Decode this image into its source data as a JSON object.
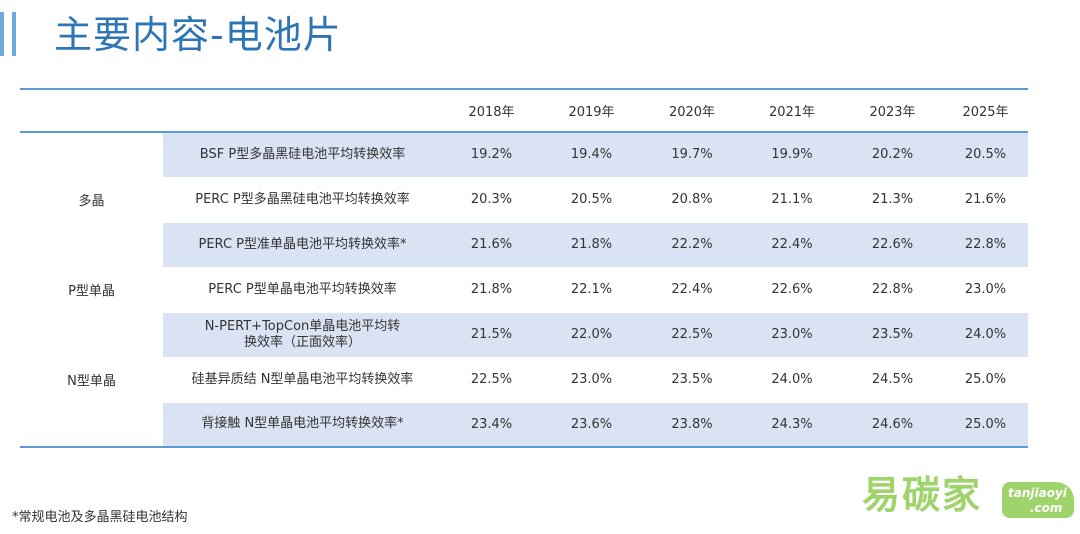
{
  "title": "主要内容-电池片",
  "table": {
    "headers": [
      "",
      "",
      "2018年",
      "2019年",
      "2020年",
      "2021年",
      "2023年",
      "2025年"
    ],
    "groups": [
      {
        "category": "多晶",
        "rows": [
          {
            "desc": "BSF P型多晶黑硅电池平均转换效率",
            "values": [
              "19.2%",
              "19.4%",
              "19.7%",
              "19.9%",
              "20.2%",
              "20.5%"
            ]
          },
          {
            "desc": "PERC P型多晶黑硅电池平均转换效率",
            "values": [
              "20.3%",
              "20.5%",
              "20.8%",
              "21.1%",
              "21.3%",
              "21.6%"
            ]
          },
          {
            "desc": "PERC P型准单晶电池平均转换效率*",
            "values": [
              "21.6%",
              "21.8%",
              "22.2%",
              "22.4%",
              "22.6%",
              "22.8%"
            ]
          }
        ]
      },
      {
        "category": "P型单晶",
        "rows": [
          {
            "desc": "PERC P型单晶电池平均转换效率",
            "values": [
              "21.8%",
              "22.1%",
              "22.4%",
              "22.6%",
              "22.8%",
              "23.0%"
            ]
          }
        ]
      },
      {
        "category": "N型单晶",
        "rows": [
          {
            "desc": "N-PERT+TopCon单晶电池平均转换效率（正面效率）",
            "values": [
              "21.5%",
              "22.0%",
              "22.5%",
              "23.0%",
              "23.5%",
              "24.0%"
            ]
          },
          {
            "desc": "硅基异质结 N型单晶电池平均转换效率",
            "values": [
              "22.5%",
              "23.0%",
              "23.5%",
              "24.0%",
              "24.5%",
              "25.0%"
            ]
          },
          {
            "desc": "背接触 N型单晶电池平均转换效率*",
            "values": [
              "23.4%",
              "23.6%",
              "23.8%",
              "24.3%",
              "24.6%",
              "25.0%"
            ]
          }
        ]
      }
    ]
  },
  "footnote": "*常规电池及多晶黑硅电池结构",
  "logo": {
    "cn": "易碳家",
    "en_line1": "tanjiaoyi",
    "en_line2": ".com"
  },
  "colors": {
    "accent": "#2e75b6",
    "rule": "#5b9bd5",
    "shade": "#dae3f3",
    "logo": "#9fd36b"
  }
}
